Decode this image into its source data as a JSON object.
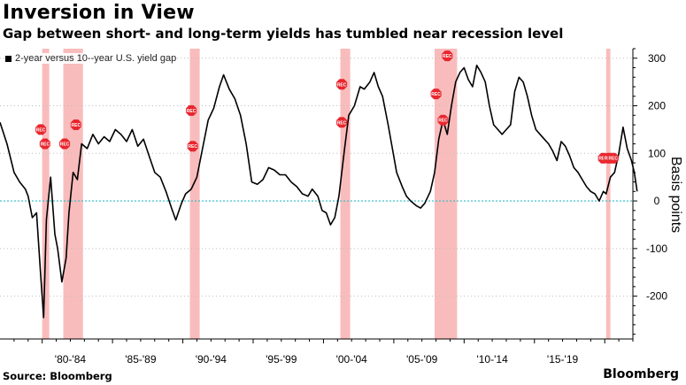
{
  "title": "Inversion in View",
  "subtitle": "Gap between short- and long-term yields has tumbled near recession level",
  "source": "Source: Bloomberg",
  "brand": "Bloomberg",
  "chart_data": {
    "type": "line",
    "ylabel": "Basis points",
    "ylim": [
      -290,
      320
    ],
    "xlim": [
      1977,
      2022
    ],
    "y_ticks": [
      300,
      200,
      100,
      0,
      -100,
      -200
    ],
    "y_tick_labels": [
      "300",
      "200",
      "100",
      "0",
      "-100",
      "-200"
    ],
    "x_ticks": [
      1982,
      1987,
      1992,
      1997,
      2002,
      2007,
      2012,
      2017
    ],
    "x_tick_labels": [
      "'80-'84",
      "'85-'89",
      "'90-'94",
      "'95-'99",
      "'00-'04",
      "'05-'09",
      "'10-'14",
      "'15-'19"
    ],
    "legend": [
      "2-year versus 10--year U.S. yield gap"
    ],
    "legend_position": "top-left",
    "grid": "horizontal dotted",
    "colors": {
      "line": "#000000",
      "zero_line": "#2bbcc8",
      "recession": "#f7a5a5",
      "marker": "#e8262e"
    },
    "recessions": [
      [
        1980.0,
        1980.5
      ],
      [
        1981.5,
        1982.9
      ],
      [
        1990.5,
        1991.2
      ],
      [
        2001.2,
        2001.9
      ],
      [
        2007.9,
        2009.5
      ],
      [
        2020.1,
        2020.4
      ]
    ],
    "rec_marker_label": "REC",
    "rec_markers": [
      {
        "x": 1979.9,
        "y": 150
      },
      {
        "x": 1980.2,
        "y": 120
      },
      {
        "x": 1981.6,
        "y": 120
      },
      {
        "x": 1982.4,
        "y": 160
      },
      {
        "x": 1990.6,
        "y": 190
      },
      {
        "x": 1990.7,
        "y": 115
      },
      {
        "x": 2001.3,
        "y": 245
      },
      {
        "x": 2001.3,
        "y": 165
      },
      {
        "x": 2008.0,
        "y": 225
      },
      {
        "x": 2008.8,
        "y": 305
      },
      {
        "x": 2008.5,
        "y": 170
      },
      {
        "x": 2019.9,
        "y": 90
      },
      {
        "x": 2020.3,
        "y": 90
      },
      {
        "x": 2020.6,
        "y": 90
      }
    ],
    "series": [
      {
        "name": "2-year versus 10--year U.S. yield gap",
        "points": [
          [
            1977.0,
            165
          ],
          [
            1977.5,
            120
          ],
          [
            1978.0,
            60
          ],
          [
            1978.4,
            40
          ],
          [
            1978.8,
            25
          ],
          [
            1979.0,
            10
          ],
          [
            1979.3,
            -35
          ],
          [
            1979.6,
            -25
          ],
          [
            1979.9,
            -160
          ],
          [
            1980.1,
            -245
          ],
          [
            1980.3,
            -40
          ],
          [
            1980.6,
            50
          ],
          [
            1980.9,
            -70
          ],
          [
            1981.1,
            -100
          ],
          [
            1981.4,
            -170
          ],
          [
            1981.7,
            -120
          ],
          [
            1981.9,
            -25
          ],
          [
            1982.2,
            60
          ],
          [
            1982.5,
            45
          ],
          [
            1982.8,
            120
          ],
          [
            1983.2,
            110
          ],
          [
            1983.6,
            140
          ],
          [
            1984.0,
            120
          ],
          [
            1984.4,
            135
          ],
          [
            1984.8,
            125
          ],
          [
            1985.2,
            150
          ],
          [
            1985.6,
            140
          ],
          [
            1986.0,
            125
          ],
          [
            1986.4,
            150
          ],
          [
            1986.8,
            115
          ],
          [
            1987.2,
            130
          ],
          [
            1987.6,
            95
          ],
          [
            1988.0,
            60
          ],
          [
            1988.4,
            50
          ],
          [
            1988.8,
            20
          ],
          [
            1989.2,
            -15
          ],
          [
            1989.5,
            -40
          ],
          [
            1989.9,
            -5
          ],
          [
            1990.2,
            15
          ],
          [
            1990.6,
            25
          ],
          [
            1991.0,
            50
          ],
          [
            1991.4,
            110
          ],
          [
            1991.8,
            170
          ],
          [
            1992.2,
            195
          ],
          [
            1992.6,
            240
          ],
          [
            1992.9,
            265
          ],
          [
            1993.3,
            235
          ],
          [
            1993.7,
            215
          ],
          [
            1994.1,
            180
          ],
          [
            1994.5,
            120
          ],
          [
            1994.9,
            40
          ],
          [
            1995.3,
            35
          ],
          [
            1995.7,
            45
          ],
          [
            1996.1,
            70
          ],
          [
            1996.5,
            65
          ],
          [
            1996.9,
            55
          ],
          [
            1997.3,
            55
          ],
          [
            1997.7,
            40
          ],
          [
            1998.1,
            30
          ],
          [
            1998.5,
            15
          ],
          [
            1998.9,
            10
          ],
          [
            1999.2,
            25
          ],
          [
            1999.6,
            10
          ],
          [
            1999.9,
            -20
          ],
          [
            2000.2,
            -25
          ],
          [
            2000.5,
            -50
          ],
          [
            2000.8,
            -35
          ],
          [
            2001.1,
            10
          ],
          [
            2001.5,
            110
          ],
          [
            2001.8,
            180
          ],
          [
            2002.2,
            200
          ],
          [
            2002.6,
            240
          ],
          [
            2002.9,
            235
          ],
          [
            2003.3,
            250
          ],
          [
            2003.6,
            270
          ],
          [
            2003.9,
            240
          ],
          [
            2004.2,
            220
          ],
          [
            2004.6,
            160
          ],
          [
            2004.9,
            110
          ],
          [
            2005.2,
            60
          ],
          [
            2005.6,
            30
          ],
          [
            2005.9,
            10
          ],
          [
            2006.2,
            0
          ],
          [
            2006.6,
            -10
          ],
          [
            2006.9,
            -15
          ],
          [
            2007.2,
            -5
          ],
          [
            2007.6,
            20
          ],
          [
            2007.9,
            60
          ],
          [
            2008.2,
            130
          ],
          [
            2008.5,
            170
          ],
          [
            2008.8,
            140
          ],
          [
            2009.1,
            200
          ],
          [
            2009.4,
            250
          ],
          [
            2009.7,
            270
          ],
          [
            2010.0,
            280
          ],
          [
            2010.3,
            255
          ],
          [
            2010.6,
            240
          ],
          [
            2010.9,
            285
          ],
          [
            2011.2,
            270
          ],
          [
            2011.5,
            250
          ],
          [
            2011.8,
            200
          ],
          [
            2012.1,
            160
          ],
          [
            2012.4,
            150
          ],
          [
            2012.7,
            140
          ],
          [
            2013.0,
            150
          ],
          [
            2013.3,
            160
          ],
          [
            2013.6,
            230
          ],
          [
            2013.9,
            260
          ],
          [
            2014.2,
            250
          ],
          [
            2014.5,
            220
          ],
          [
            2014.8,
            180
          ],
          [
            2015.1,
            150
          ],
          [
            2015.4,
            140
          ],
          [
            2015.7,
            130
          ],
          [
            2016.0,
            120
          ],
          [
            2016.3,
            105
          ],
          [
            2016.6,
            85
          ],
          [
            2016.9,
            125
          ],
          [
            2017.2,
            115
          ],
          [
            2017.5,
            95
          ],
          [
            2017.8,
            70
          ],
          [
            2018.1,
            60
          ],
          [
            2018.4,
            45
          ],
          [
            2018.7,
            30
          ],
          [
            2019.0,
            20
          ],
          [
            2019.3,
            15
          ],
          [
            2019.6,
            0
          ],
          [
            2019.9,
            20
          ],
          [
            2020.1,
            15
          ],
          [
            2020.4,
            50
          ],
          [
            2020.7,
            60
          ],
          [
            2021.0,
            100
          ],
          [
            2021.3,
            155
          ],
          [
            2021.6,
            110
          ],
          [
            2021.9,
            85
          ],
          [
            2022.1,
            60
          ],
          [
            2022.3,
            20
          ]
        ]
      }
    ]
  }
}
